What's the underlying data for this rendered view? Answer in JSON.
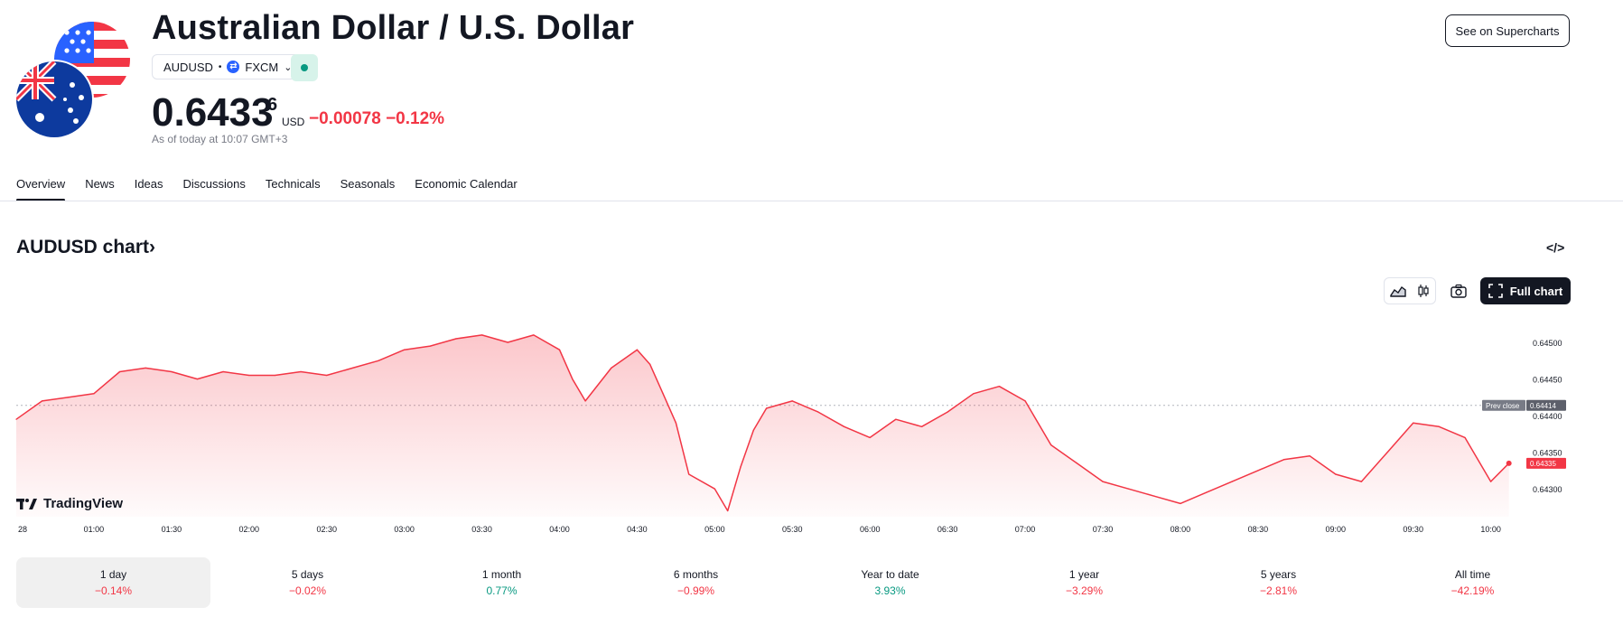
{
  "header": {
    "title": "Australian Dollar / U.S. Dollar",
    "symbol": "AUDUSD",
    "exchange": "FXCM",
    "price_main": "0.6433",
    "price_sup": "6",
    "currency": "USD",
    "change_abs": "−0.00078",
    "change_pct": "−0.12%",
    "as_of": "As of today at 10:07 GMT+3",
    "see_supercharts": "See on Supercharts",
    "status_color": "#089981"
  },
  "tabs": [
    "Overview",
    "News",
    "Ideas",
    "Discussions",
    "Technicals",
    "Seasonals",
    "Economic Calendar"
  ],
  "chart_header": {
    "title": "AUDUSD chart",
    "chevron": "›",
    "embed_icon": "</>",
    "full_chart": "Full chart"
  },
  "chart_data": {
    "type": "area",
    "symbol": "AUDUSD",
    "line_color": "#f23645",
    "y_ticks": [
      "0.64500",
      "0.64450",
      "0.64400",
      "0.64350",
      "0.64300"
    ],
    "ylim": [
      0.64262,
      0.64542
    ],
    "x_ticks": [
      "28",
      "01:00",
      "01:30",
      "02:00",
      "02:30",
      "03:00",
      "03:30",
      "04:00",
      "04:30",
      "05:00",
      "05:30",
      "06:00",
      "06:30",
      "07:00",
      "07:30",
      "08:00",
      "08:30",
      "09:00",
      "09:30",
      "10:00"
    ],
    "prev_close_label": "Prev close",
    "prev_close_value": "0.64414",
    "last_value": "0.64335",
    "series": [
      {
        "x": [
          "00:30",
          "00:40",
          "00:50",
          "01:00",
          "01:10",
          "01:20",
          "01:30",
          "01:40",
          "01:50",
          "02:00",
          "02:10",
          "02:20",
          "02:30",
          "02:40",
          "02:50",
          "03:00",
          "03:10",
          "03:20",
          "03:30",
          "03:40",
          "03:50",
          "04:00",
          "04:05",
          "04:10",
          "04:20",
          "04:30",
          "04:35",
          "04:40",
          "04:45",
          "04:50",
          "05:00",
          "05:05",
          "05:10",
          "05:15",
          "05:20",
          "05:30",
          "05:40",
          "05:50",
          "06:00",
          "06:10",
          "06:20",
          "06:30",
          "06:40",
          "06:50",
          "07:00",
          "07:10",
          "07:20",
          "07:30",
          "07:40",
          "07:50",
          "08:00",
          "08:10",
          "08:20",
          "08:30",
          "08:40",
          "08:50",
          "09:00",
          "09:10",
          "09:20",
          "09:30",
          "09:40",
          "09:50",
          "10:00",
          "10:07"
        ],
        "values": [
          0.64395,
          0.6442,
          0.64425,
          0.6443,
          0.6446,
          0.64465,
          0.6446,
          0.6445,
          0.6446,
          0.64455,
          0.64455,
          0.6446,
          0.64455,
          0.64465,
          0.64475,
          0.6449,
          0.64495,
          0.64505,
          0.6451,
          0.645,
          0.6451,
          0.6449,
          0.6445,
          0.6442,
          0.64465,
          0.6449,
          0.6447,
          0.6443,
          0.6439,
          0.6432,
          0.643,
          0.6427,
          0.6433,
          0.6438,
          0.6441,
          0.6442,
          0.64405,
          0.64385,
          0.6437,
          0.64395,
          0.64385,
          0.64405,
          0.6443,
          0.6444,
          0.6442,
          0.6436,
          0.64335,
          0.6431,
          0.643,
          0.6429,
          0.6428,
          0.64295,
          0.6431,
          0.64325,
          0.6434,
          0.64345,
          0.6432,
          0.6431,
          0.6435,
          0.6439,
          0.64385,
          0.6437,
          0.6431,
          0.64335
        ]
      }
    ]
  },
  "tv_logo_text": "TradingView",
  "periods": [
    {
      "label": "1 day",
      "value": "−0.14%",
      "dir": "neg"
    },
    {
      "label": "5 days",
      "value": "−0.02%",
      "dir": "neg"
    },
    {
      "label": "1 month",
      "value": "0.77%",
      "dir": "pos"
    },
    {
      "label": "6 months",
      "value": "−0.99%",
      "dir": "neg"
    },
    {
      "label": "Year to date",
      "value": "3.93%",
      "dir": "pos"
    },
    {
      "label": "1 year",
      "value": "−3.29%",
      "dir": "neg"
    },
    {
      "label": "5 years",
      "value": "−2.81%",
      "dir": "neg"
    },
    {
      "label": "All time",
      "value": "−42.19%",
      "dir": "neg"
    }
  ]
}
